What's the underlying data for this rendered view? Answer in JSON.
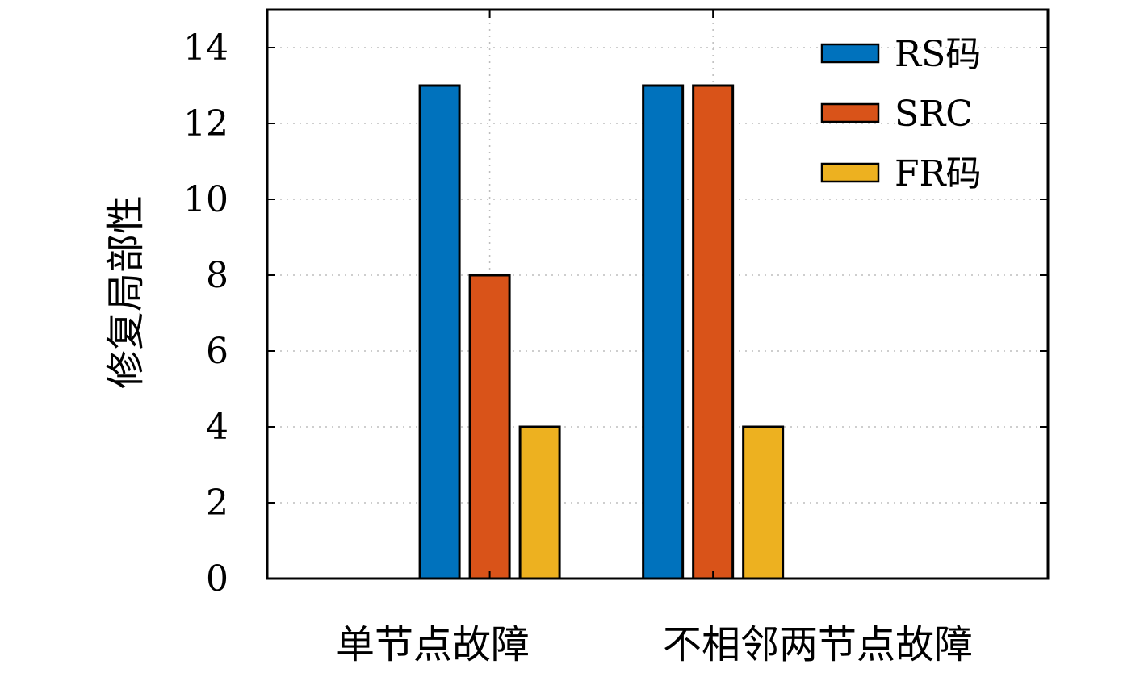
{
  "chart_data": {
    "type": "bar",
    "title": "",
    "xlabel": "",
    "ylabel": "修复局部性",
    "ylim": [
      0,
      15
    ],
    "yticks": [
      0,
      2,
      4,
      6,
      8,
      10,
      12,
      14
    ],
    "categories": [
      "单节点故障",
      "不相邻两节点故障"
    ],
    "series": [
      {
        "name": "RS码",
        "color": "#0072BD",
        "values": [
          13,
          13
        ]
      },
      {
        "name": "SRC",
        "color": "#D95319",
        "values": [
          8,
          13
        ]
      },
      {
        "name": "FR码",
        "color": "#EDB120",
        "values": [
          4,
          4
        ]
      }
    ],
    "grid": true,
    "legend_position": "top-right"
  }
}
